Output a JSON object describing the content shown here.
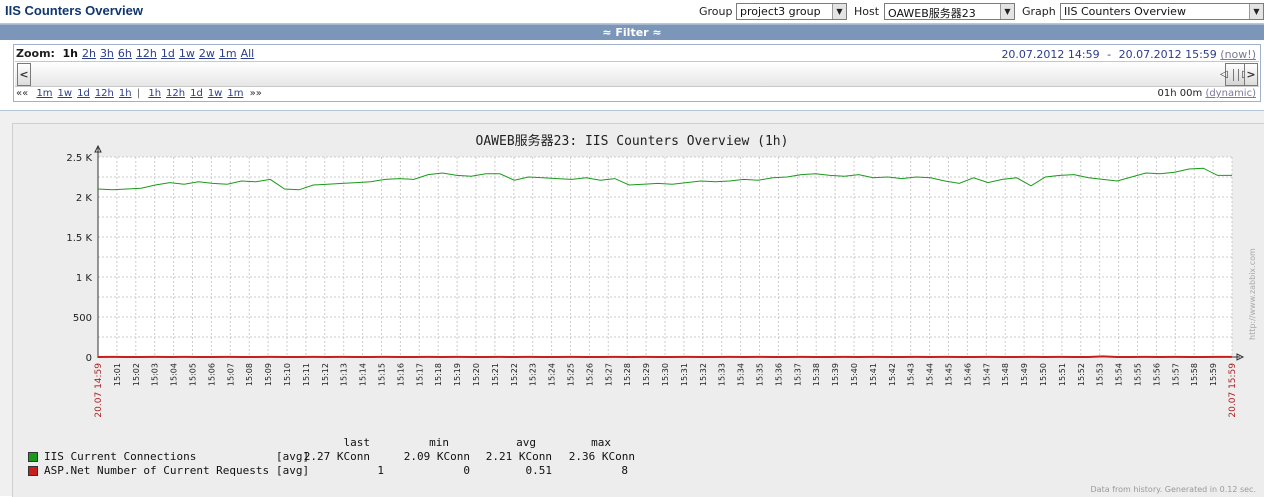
{
  "header": {
    "title": "IIS Counters Overview",
    "group_label": "Group",
    "group_value": "project3 group",
    "host_label": "Host",
    "host_value": "OAWEB服务器23",
    "graph_label": "Graph",
    "graph_value": "IIS Counters Overview"
  },
  "filter": {
    "label": "≈ Filter ≈"
  },
  "zoom": {
    "label": "Zoom:",
    "options": [
      "1h",
      "2h",
      "3h",
      "6h",
      "12h",
      "1d",
      "1w",
      "2w",
      "1m",
      "All"
    ],
    "active": "1h"
  },
  "period": {
    "from": "20.07.2012 14:59",
    "separator": "-",
    "to": "20.07.2012 15:59",
    "now_label": "(now!)",
    "back_label": "««",
    "back_options": [
      "1m",
      "1w",
      "1d",
      "12h",
      "1h"
    ],
    "divider": "|",
    "fwd_options": [
      "1h",
      "12h",
      "1d",
      "1w",
      "1m"
    ],
    "fwd_label": "»»",
    "duration": "01h 00m",
    "dynamic_label": "(dynamic)"
  },
  "scroll": {
    "left_arrow": "<",
    "right_arrow": ">"
  },
  "graph": {
    "title": "OAWEB服务器23: IIS Counters Overview (1h)",
    "start_label": "20.07 14:59",
    "end_label": "20.07 15:59",
    "watermark": "http://www.zabbix.com",
    "footer": "Data from history. Generated in 0.12 sec."
  },
  "legend": {
    "headers": {
      "last": "last",
      "min": "min",
      "avg": "avg",
      "max": "max"
    },
    "items": [
      {
        "name": "IIS Current Connections",
        "agg": "[avg]",
        "last": "2.27 KConn",
        "min": "2.09 KConn",
        "avg": "2.21 KConn",
        "max": "2.36 KConn",
        "color": "#1a9a1a"
      },
      {
        "name": "ASP.Net Number of Current Requests",
        "agg": "[avg]",
        "last": "1",
        "min": "0",
        "avg": "0.51",
        "max": "8",
        "color": "#c81e1e"
      }
    ]
  },
  "chart_data": {
    "type": "line",
    "title": "OAWEB服务器23: IIS Counters Overview (1h)",
    "xlabel": "",
    "ylabel": "",
    "y_ticks": [
      "0",
      "500",
      "1 K",
      "1.5 K",
      "2 K",
      "2.5 K"
    ],
    "ylim": [
      0,
      2500
    ],
    "x_tick_labels": [
      "15:01",
      "15:02",
      "15:03",
      "15:04",
      "15:05",
      "15:06",
      "15:07",
      "15:08",
      "15:09",
      "15:10",
      "15:11",
      "15:12",
      "15:13",
      "15:14",
      "15:15",
      "15:16",
      "15:17",
      "15:18",
      "15:19",
      "15:20",
      "15:21",
      "15:22",
      "15:23",
      "15:24",
      "15:25",
      "15:26",
      "15:27",
      "15:28",
      "15:29",
      "15:30",
      "15:31",
      "15:32",
      "15:33",
      "15:34",
      "15:35",
      "15:36",
      "15:37",
      "15:38",
      "15:39",
      "15:40",
      "15:41",
      "15:42",
      "15:43",
      "15:44",
      "15:45",
      "15:46",
      "15:47",
      "15:48",
      "15:49",
      "15:50",
      "15:51",
      "15:52",
      "15:53",
      "15:54",
      "15:55",
      "15:56",
      "15:57",
      "15:58",
      "15:59"
    ],
    "grid": true,
    "series": [
      {
        "name": "IIS Current Connections",
        "color": "#1a9a1a",
        "values": [
          2100,
          2090,
          2100,
          2110,
          2150,
          2180,
          2160,
          2190,
          2170,
          2160,
          2200,
          2190,
          2220,
          2100,
          2090,
          2150,
          2160,
          2170,
          2180,
          2190,
          2220,
          2230,
          2220,
          2280,
          2300,
          2270,
          2260,
          2290,
          2290,
          2210,
          2250,
          2240,
          2230,
          2220,
          2240,
          2210,
          2230,
          2150,
          2160,
          2170,
          2160,
          2180,
          2200,
          2190,
          2200,
          2220,
          2210,
          2240,
          2250,
          2280,
          2290,
          2270,
          2260,
          2280,
          2240,
          2250,
          2230,
          2250,
          2240,
          2200,
          2170,
          2240,
          2180,
          2220,
          2240,
          2140,
          2250,
          2270,
          2280,
          2240,
          2220,
          2200,
          2250,
          2300,
          2290,
          2310,
          2350,
          2360,
          2270,
          2270
        ],
        "last": 2270,
        "min": 2090,
        "avg": 2210,
        "max": 2360
      },
      {
        "name": "ASP.Net Number of Current Requests",
        "color": "#c81e1e",
        "values": [
          0,
          1,
          0,
          0,
          1,
          0,
          1,
          0,
          0,
          1,
          0,
          0,
          1,
          0,
          0,
          1,
          0,
          1,
          0,
          0,
          1,
          0,
          0,
          1,
          0,
          1,
          0,
          0,
          1,
          0,
          1,
          0,
          0,
          1,
          0,
          0,
          1,
          0,
          1,
          0,
          0,
          1,
          0,
          0,
          1,
          0,
          1,
          0,
          0,
          1,
          0,
          0,
          1,
          0,
          1,
          0,
          0,
          1,
          0,
          1,
          0,
          0,
          1,
          0,
          0,
          1,
          0,
          1,
          0,
          0,
          8,
          0,
          0,
          1,
          0,
          1,
          0,
          0,
          1,
          1
        ],
        "last": 1,
        "min": 0,
        "avg": 0.51,
        "max": 8
      }
    ]
  }
}
